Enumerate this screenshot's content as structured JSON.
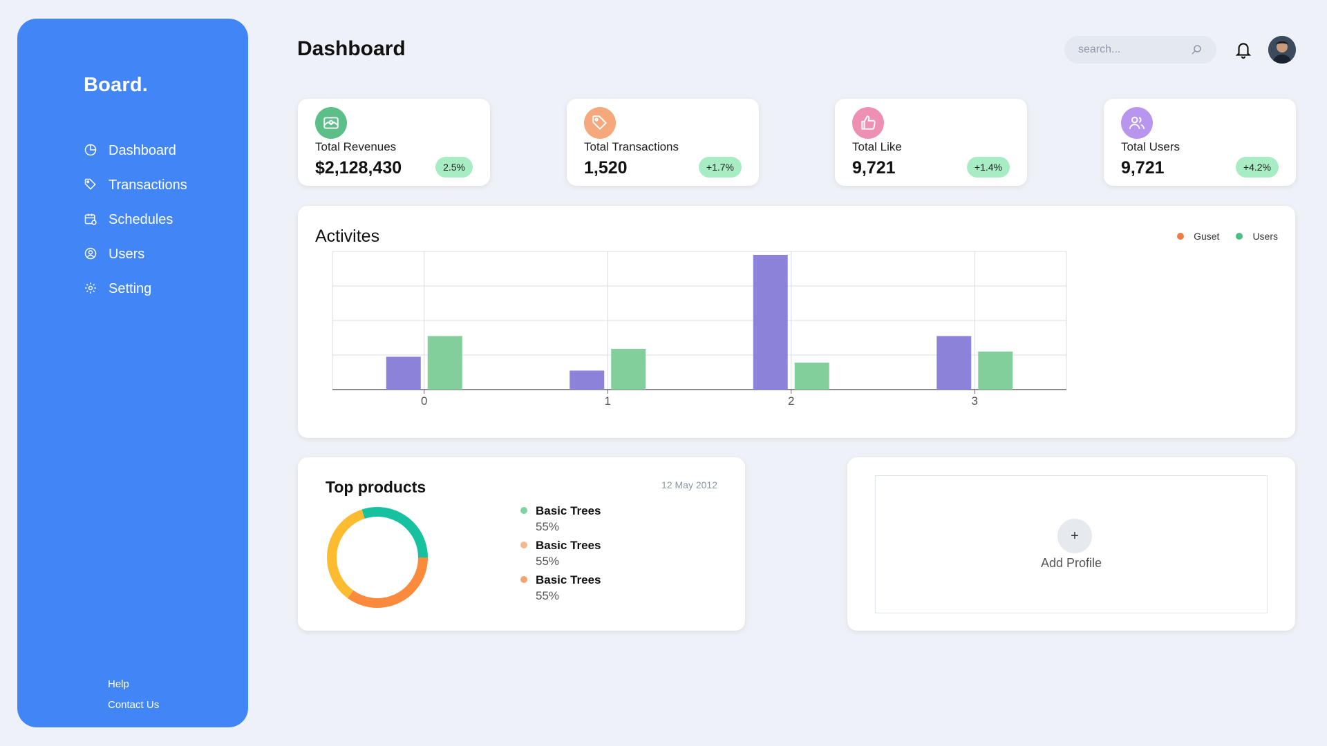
{
  "sidebar": {
    "brand": "Board.",
    "items": [
      {
        "label": "Dashboard",
        "icon": "pie-chart-icon"
      },
      {
        "label": "Transactions",
        "icon": "tag-icon"
      },
      {
        "label": "Schedules",
        "icon": "calendar-icon"
      },
      {
        "label": "Users",
        "icon": "user-circle-icon"
      },
      {
        "label": "Setting",
        "icon": "gear-icon"
      }
    ],
    "footer": {
      "help": "Help",
      "contact": "Contact Us"
    }
  },
  "header": {
    "title": "Dashboard",
    "search_placeholder": "search..."
  },
  "stats": [
    {
      "label": "Total Revenues",
      "value": "$2,128,430",
      "change": "2.5%",
      "icon": "banknote-icon",
      "icon_color": "#5cbf88"
    },
    {
      "label": "Total Transactions",
      "value": "1,520",
      "change": "+1.7%",
      "icon": "tag-icon",
      "icon_color": "#f4a87c"
    },
    {
      "label": "Total Like",
      "value": "9,721",
      "change": "+1.4%",
      "icon": "thumbs-up-icon",
      "icon_color": "#ee8fb4"
    },
    {
      "label": "Total Users",
      "value": "9,721",
      "change": "+4.2%",
      "icon": "users-icon",
      "icon_color": "#b996ee"
    }
  ],
  "activities": {
    "title": "Activites",
    "legend": [
      {
        "label": "Guset",
        "color": "#f07c3f"
      },
      {
        "label": "Users",
        "color": "#4cc084"
      }
    ]
  },
  "chart_data": {
    "type": "bar",
    "categories": [
      "0",
      "1",
      "2",
      "3"
    ],
    "series": [
      {
        "name": "Guset",
        "values": [
          95,
          55,
          390,
          155
        ],
        "color": "#8c82d9"
      },
      {
        "name": "Users",
        "values": [
          155,
          118,
          78,
          110
        ],
        "color": "#83cf9c"
      }
    ],
    "ylim": [
      0,
      400
    ],
    "grid": true
  },
  "products": {
    "title": "Top products",
    "date": "12 May 2012",
    "items": [
      {
        "name": "Basic Trees",
        "percent": "55%",
        "color": "#7fd3a0"
      },
      {
        "name": "Basic Trees",
        "percent": "55%",
        "color": "#f5b98e"
      },
      {
        "name": "Basic Trees",
        "percent": "55%",
        "color": "#f4a46f"
      }
    ],
    "donut": [
      {
        "value": 0.3,
        "color": "#16c1a0"
      },
      {
        "value": 0.35,
        "color": "#fb8a3c"
      },
      {
        "value": 0.35,
        "color": "#fdbb30"
      }
    ]
  },
  "profile": {
    "plus": "+",
    "add_label": "Add Profile"
  }
}
